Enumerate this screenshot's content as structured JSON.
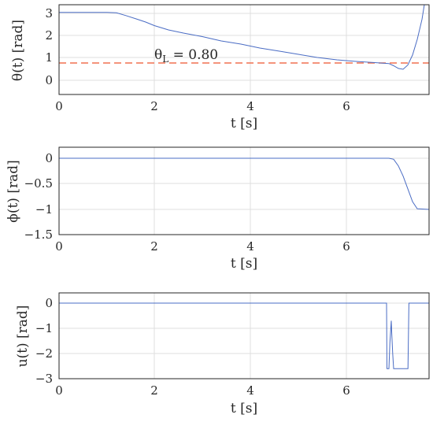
{
  "colors": {
    "series": "#4a6cc4",
    "reference": "#f07050",
    "grid": "#dfdfdf",
    "axes": "#262626"
  },
  "chart_data": [
    {
      "type": "line",
      "xlabel": "t [s]",
      "ylabel": "θ(t) [rad]",
      "xlim": [
        0,
        7.7
      ],
      "ylim": [
        -0.5,
        3.5
      ],
      "xticks": [
        "0",
        "2",
        "4",
        "6"
      ],
      "yticks": [
        "0",
        "1",
        "2",
        "3"
      ],
      "grid": true,
      "series": [
        {
          "x": [
            0,
            0.5,
            1.0,
            1.2,
            1.4,
            1.6,
            1.8,
            2.0,
            2.3,
            2.6,
            3.0,
            3.4,
            3.8,
            4.2,
            4.6,
            5.0,
            5.4,
            5.8,
            6.2,
            6.6,
            6.9,
            7.0,
            7.1,
            7.2,
            7.3,
            7.4,
            7.5,
            7.6,
            7.65
          ],
          "y": [
            3.14,
            3.14,
            3.14,
            3.12,
            3.0,
            2.85,
            2.7,
            2.55,
            2.35,
            2.22,
            2.05,
            1.85,
            1.7,
            1.55,
            1.4,
            1.25,
            1.1,
            1.0,
            0.92,
            0.86,
            0.82,
            0.72,
            0.6,
            0.56,
            0.75,
            1.2,
            1.9,
            2.8,
            3.5
          ]
        },
        {
          "x": [
            0,
            7.7
          ],
          "y": [
            0.8,
            0.8
          ]
        }
      ],
      "annotation": {
        "text": "θL = 0.80",
        "x": 2.0,
        "y": 1.1
      }
    },
    {
      "type": "line",
      "xlabel": "t [s]",
      "ylabel": "ϕ(t) [rad]",
      "xlim": [
        0,
        7.7
      ],
      "ylim": [
        -1.5,
        0.2
      ],
      "xticks": [
        "0",
        "2",
        "4",
        "6"
      ],
      "yticks": [
        "0",
        "−0.5",
        "−1",
        "−1.5"
      ],
      "grid": true,
      "series": [
        {
          "x": [
            0,
            6.9,
            7.0,
            7.1,
            7.2,
            7.3,
            7.4,
            7.5,
            7.7
          ],
          "y": [
            0,
            0,
            -0.02,
            -0.15,
            -0.35,
            -0.6,
            -0.85,
            -0.99,
            -1.0
          ]
        }
      ]
    },
    {
      "type": "line",
      "xlabel": "t [s]",
      "ylabel": "u(t) [rad]",
      "xlim": [
        0,
        7.7
      ],
      "ylim": [
        -3,
        0.4
      ],
      "xticks": [
        "0",
        "2",
        "4",
        "6"
      ],
      "yticks": [
        "0",
        "−1",
        "−2",
        "−3"
      ],
      "grid": true,
      "series": [
        {
          "x": [
            0,
            6.85,
            6.86,
            6.9,
            6.92,
            6.95,
            6.96,
            6.98,
            7.0,
            7.02,
            7.3,
            7.32,
            7.7
          ],
          "y": [
            0,
            0,
            -2.6,
            -2.6,
            -1.6,
            -0.7,
            -1.2,
            -2.0,
            -2.6,
            -2.6,
            -2.6,
            0,
            0
          ]
        }
      ]
    }
  ]
}
